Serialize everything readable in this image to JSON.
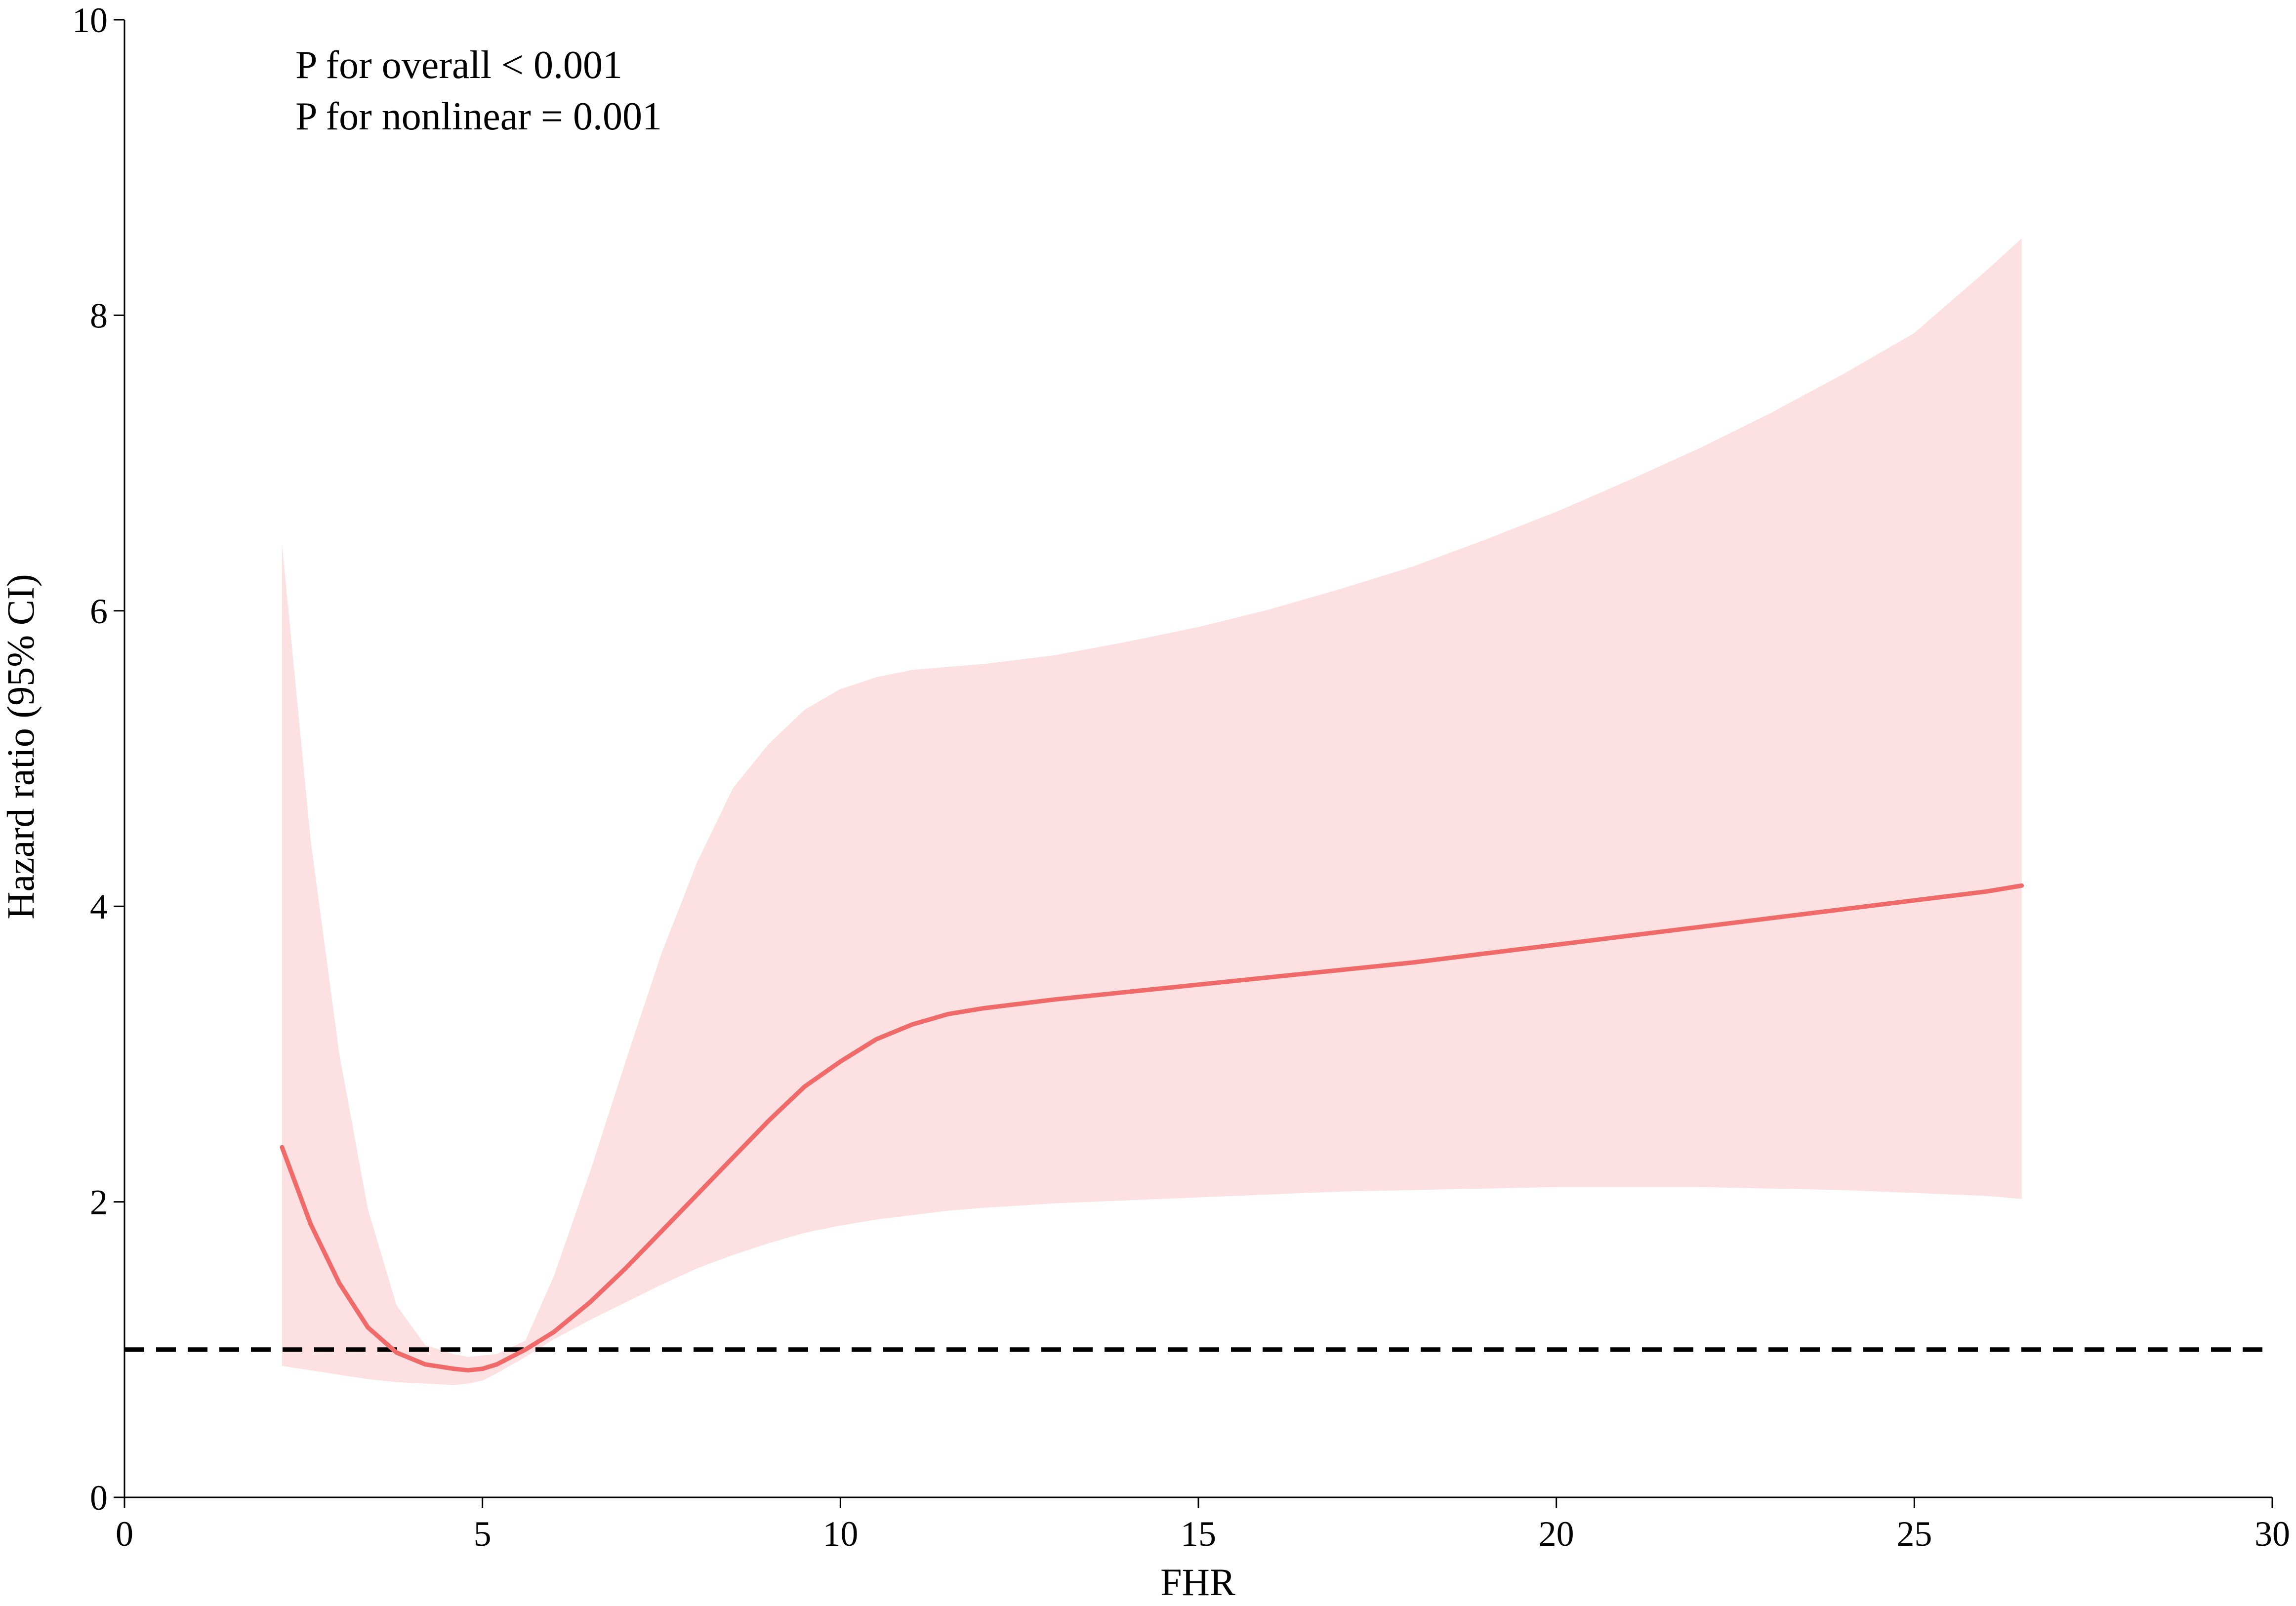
{
  "chart_data": {
    "type": "line",
    "xlabel": "FHR",
    "ylabel": "Hazard ratio (95% CI)",
    "xlim": [
      0,
      30
    ],
    "ylim": [
      0,
      10
    ],
    "x_ticks": [
      0,
      5,
      10,
      15,
      20,
      25,
      30
    ],
    "y_ticks": [
      0,
      2,
      4,
      6,
      8,
      10
    ],
    "grid": false,
    "annotations": [
      "P for overall < 0.001",
      "P for nonlinear = 0.001"
    ],
    "reference_line": {
      "y": 1,
      "style": "dashed",
      "color": "#000000"
    },
    "colors": {
      "line": "#f06a6a",
      "band": "#fde0e1"
    },
    "series": [
      {
        "x": [
          2.2,
          2.6,
          3.0,
          3.4,
          3.8,
          4.2,
          4.6,
          4.8,
          5.0,
          5.2,
          5.6,
          6.0,
          6.5,
          7.0,
          7.5,
          8.0,
          8.5,
          9.0,
          9.5,
          10.0,
          10.5,
          11.0,
          11.5,
          12.0,
          13.0,
          14.0,
          15.0,
          16.0,
          17.0,
          18.0,
          19.0,
          20.0,
          21.0,
          22.0,
          23.0,
          24.0,
          25.0,
          26.0,
          26.5
        ],
        "y": [
          2.37,
          1.85,
          1.45,
          1.15,
          0.98,
          0.9,
          0.87,
          0.86,
          0.87,
          0.9,
          1.0,
          1.12,
          1.32,
          1.55,
          1.8,
          2.05,
          2.3,
          2.55,
          2.78,
          2.95,
          3.1,
          3.2,
          3.27,
          3.31,
          3.37,
          3.42,
          3.47,
          3.52,
          3.57,
          3.62,
          3.68,
          3.74,
          3.8,
          3.86,
          3.92,
          3.98,
          4.04,
          4.1,
          4.14
        ],
        "lower": [
          0.89,
          0.86,
          0.83,
          0.8,
          0.78,
          0.77,
          0.76,
          0.77,
          0.79,
          0.84,
          0.95,
          1.07,
          1.2,
          1.32,
          1.44,
          1.55,
          1.64,
          1.72,
          1.79,
          1.84,
          1.88,
          1.91,
          1.94,
          1.96,
          1.99,
          2.01,
          2.03,
          2.05,
          2.07,
          2.08,
          2.09,
          2.1,
          2.1,
          2.1,
          2.09,
          2.08,
          2.06,
          2.04,
          2.02
        ],
        "upper": [
          6.45,
          4.45,
          3.0,
          1.95,
          1.3,
          1.03,
          0.97,
          0.95,
          0.96,
          0.97,
          1.06,
          1.5,
          2.2,
          2.95,
          3.68,
          4.3,
          4.8,
          5.1,
          5.33,
          5.47,
          5.55,
          5.6,
          5.62,
          5.64,
          5.7,
          5.79,
          5.89,
          6.01,
          6.15,
          6.3,
          6.48,
          6.67,
          6.88,
          7.1,
          7.34,
          7.6,
          7.88,
          8.3,
          8.52
        ]
      }
    ]
  }
}
